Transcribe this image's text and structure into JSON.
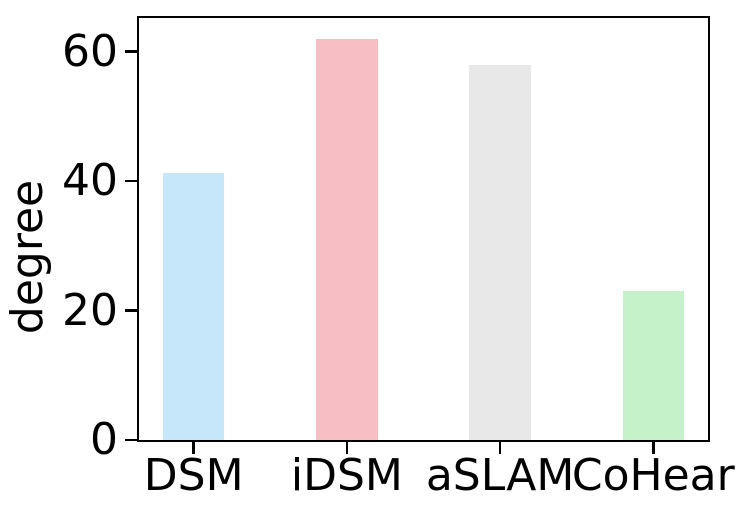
{
  "figure": {
    "background": "#ffffff",
    "axis_color": "#000000",
    "text_color": "#000000"
  },
  "chart_data": {
    "type": "bar",
    "title": "",
    "xlabel": "",
    "ylabel": "degree",
    "categories": [
      "DSM",
      "iDSM",
      "aSLAM",
      "CoHear"
    ],
    "values": [
      41.3,
      62,
      58,
      23
    ],
    "bar_colors": [
      "#c6e6fa",
      "#f7bec3",
      "#e8e8e8",
      "#c6f2ca"
    ],
    "yticks": [
      0,
      20,
      40,
      60
    ],
    "ylim": [
      0,
      65.5
    ],
    "xlim": [
      -0.37,
      3.37
    ],
    "bar_width": 0.4,
    "grid": false,
    "legend": "none"
  }
}
